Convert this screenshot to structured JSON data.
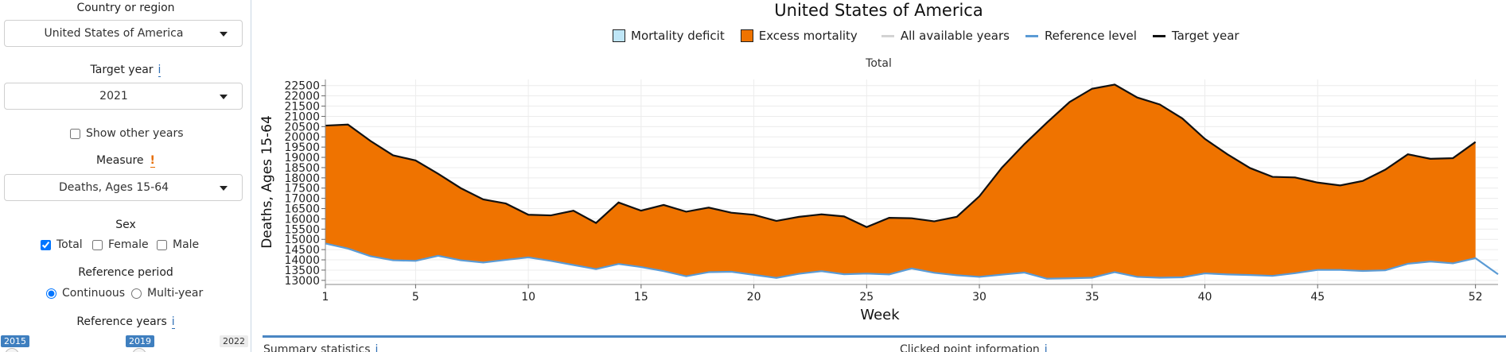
{
  "sidebar": {
    "country_label": "Country or region",
    "country_value": "United States of America",
    "target_year_label": "Target year",
    "target_year_info": "i",
    "target_year_value": "2021",
    "show_other_years": "Show other years",
    "measure_label": "Measure",
    "measure_warn": "!",
    "measure_value": "Deaths, Ages 15-64",
    "sex_label": "Sex",
    "sex_total": "Total",
    "sex_female": "Female",
    "sex_male": "Male",
    "ref_period_label": "Reference period",
    "ref_continuous": "Continuous",
    "ref_multiyear": "Multi-year",
    "ref_years_label": "Reference years",
    "ref_years_info": "i",
    "slider_min": "2015",
    "slider_sel": "2019",
    "slider_max": "2022"
  },
  "main": {
    "title": "United States of America",
    "panel_title": "Total",
    "summary_label": "Summary statistics",
    "summary_info": "i",
    "clicked_label": "Clicked point information",
    "clicked_info": "i"
  },
  "legend": {
    "deficit": "Mortality deficit",
    "excess": "Excess mortality",
    "all_years": "All available years",
    "reference": "Reference level",
    "target": "Target year"
  },
  "colors": {
    "deficit": "#bfe6f7",
    "excess": "#ef7300",
    "reference": "#5b9bd5",
    "target": "#111111",
    "all_years": "#d3d3d3"
  },
  "chart_data": {
    "type": "area",
    "xlabel": "Week",
    "ylabel": "Deaths, Ages 15-64",
    "xlim": [
      1,
      53
    ],
    "ylim": [
      12800,
      22800
    ],
    "xticks": [
      1,
      5,
      10,
      15,
      20,
      25,
      30,
      35,
      40,
      45,
      52
    ],
    "yticks": [
      13000,
      13500,
      14000,
      14500,
      15000,
      15500,
      16000,
      16500,
      17000,
      17500,
      18000,
      18500,
      19000,
      19500,
      20000,
      20500,
      21000,
      21500,
      22000,
      22500
    ],
    "series": [
      {
        "name": "Target year",
        "x": [
          1,
          2,
          3,
          4,
          5,
          6,
          7,
          8,
          9,
          10,
          11,
          12,
          13,
          14,
          15,
          16,
          17,
          18,
          19,
          20,
          21,
          22,
          23,
          24,
          25,
          26,
          27,
          28,
          29,
          30,
          31,
          32,
          33,
          34,
          35,
          36,
          37,
          38,
          39,
          40,
          41,
          42,
          43,
          44,
          45,
          46,
          47,
          48,
          49,
          50,
          51,
          52
        ],
        "values": [
          20550,
          20600,
          19800,
          19100,
          18850,
          18200,
          17500,
          16950,
          16750,
          16200,
          16170,
          16400,
          15800,
          16800,
          16400,
          16680,
          16350,
          16550,
          16300,
          16200,
          15900,
          16100,
          16220,
          16120,
          15600,
          16050,
          16030,
          15880,
          16100,
          17100,
          18500,
          19650,
          20700,
          21700,
          22350,
          22550,
          21920,
          21580,
          20900,
          19900,
          19150,
          18480,
          18050,
          18020,
          17770,
          17630,
          17850,
          18400,
          19150,
          18930,
          18960,
          19750
        ]
      },
      {
        "name": "Reference level",
        "x": [
          1,
          2,
          3,
          4,
          5,
          6,
          7,
          8,
          9,
          10,
          11,
          12,
          13,
          14,
          15,
          16,
          17,
          18,
          19,
          20,
          21,
          22,
          23,
          24,
          25,
          26,
          27,
          28,
          29,
          30,
          31,
          32,
          33,
          34,
          35,
          36,
          37,
          38,
          39,
          40,
          41,
          42,
          43,
          44,
          45,
          46,
          47,
          48,
          49,
          50,
          51,
          52,
          53
        ],
        "values": [
          14800,
          14550,
          14180,
          13980,
          13950,
          14200,
          13980,
          13870,
          14000,
          14120,
          13950,
          13750,
          13550,
          13800,
          13650,
          13450,
          13200,
          13400,
          13420,
          13270,
          13120,
          13320,
          13450,
          13300,
          13330,
          13290,
          13580,
          13370,
          13250,
          13170,
          13280,
          13380,
          13080,
          13100,
          13130,
          13400,
          13170,
          13130,
          13150,
          13340,
          13290,
          13260,
          13220,
          13350,
          13510,
          13510,
          13460,
          13490,
          13810,
          13920,
          13830,
          14080,
          13300
        ]
      }
    ]
  }
}
